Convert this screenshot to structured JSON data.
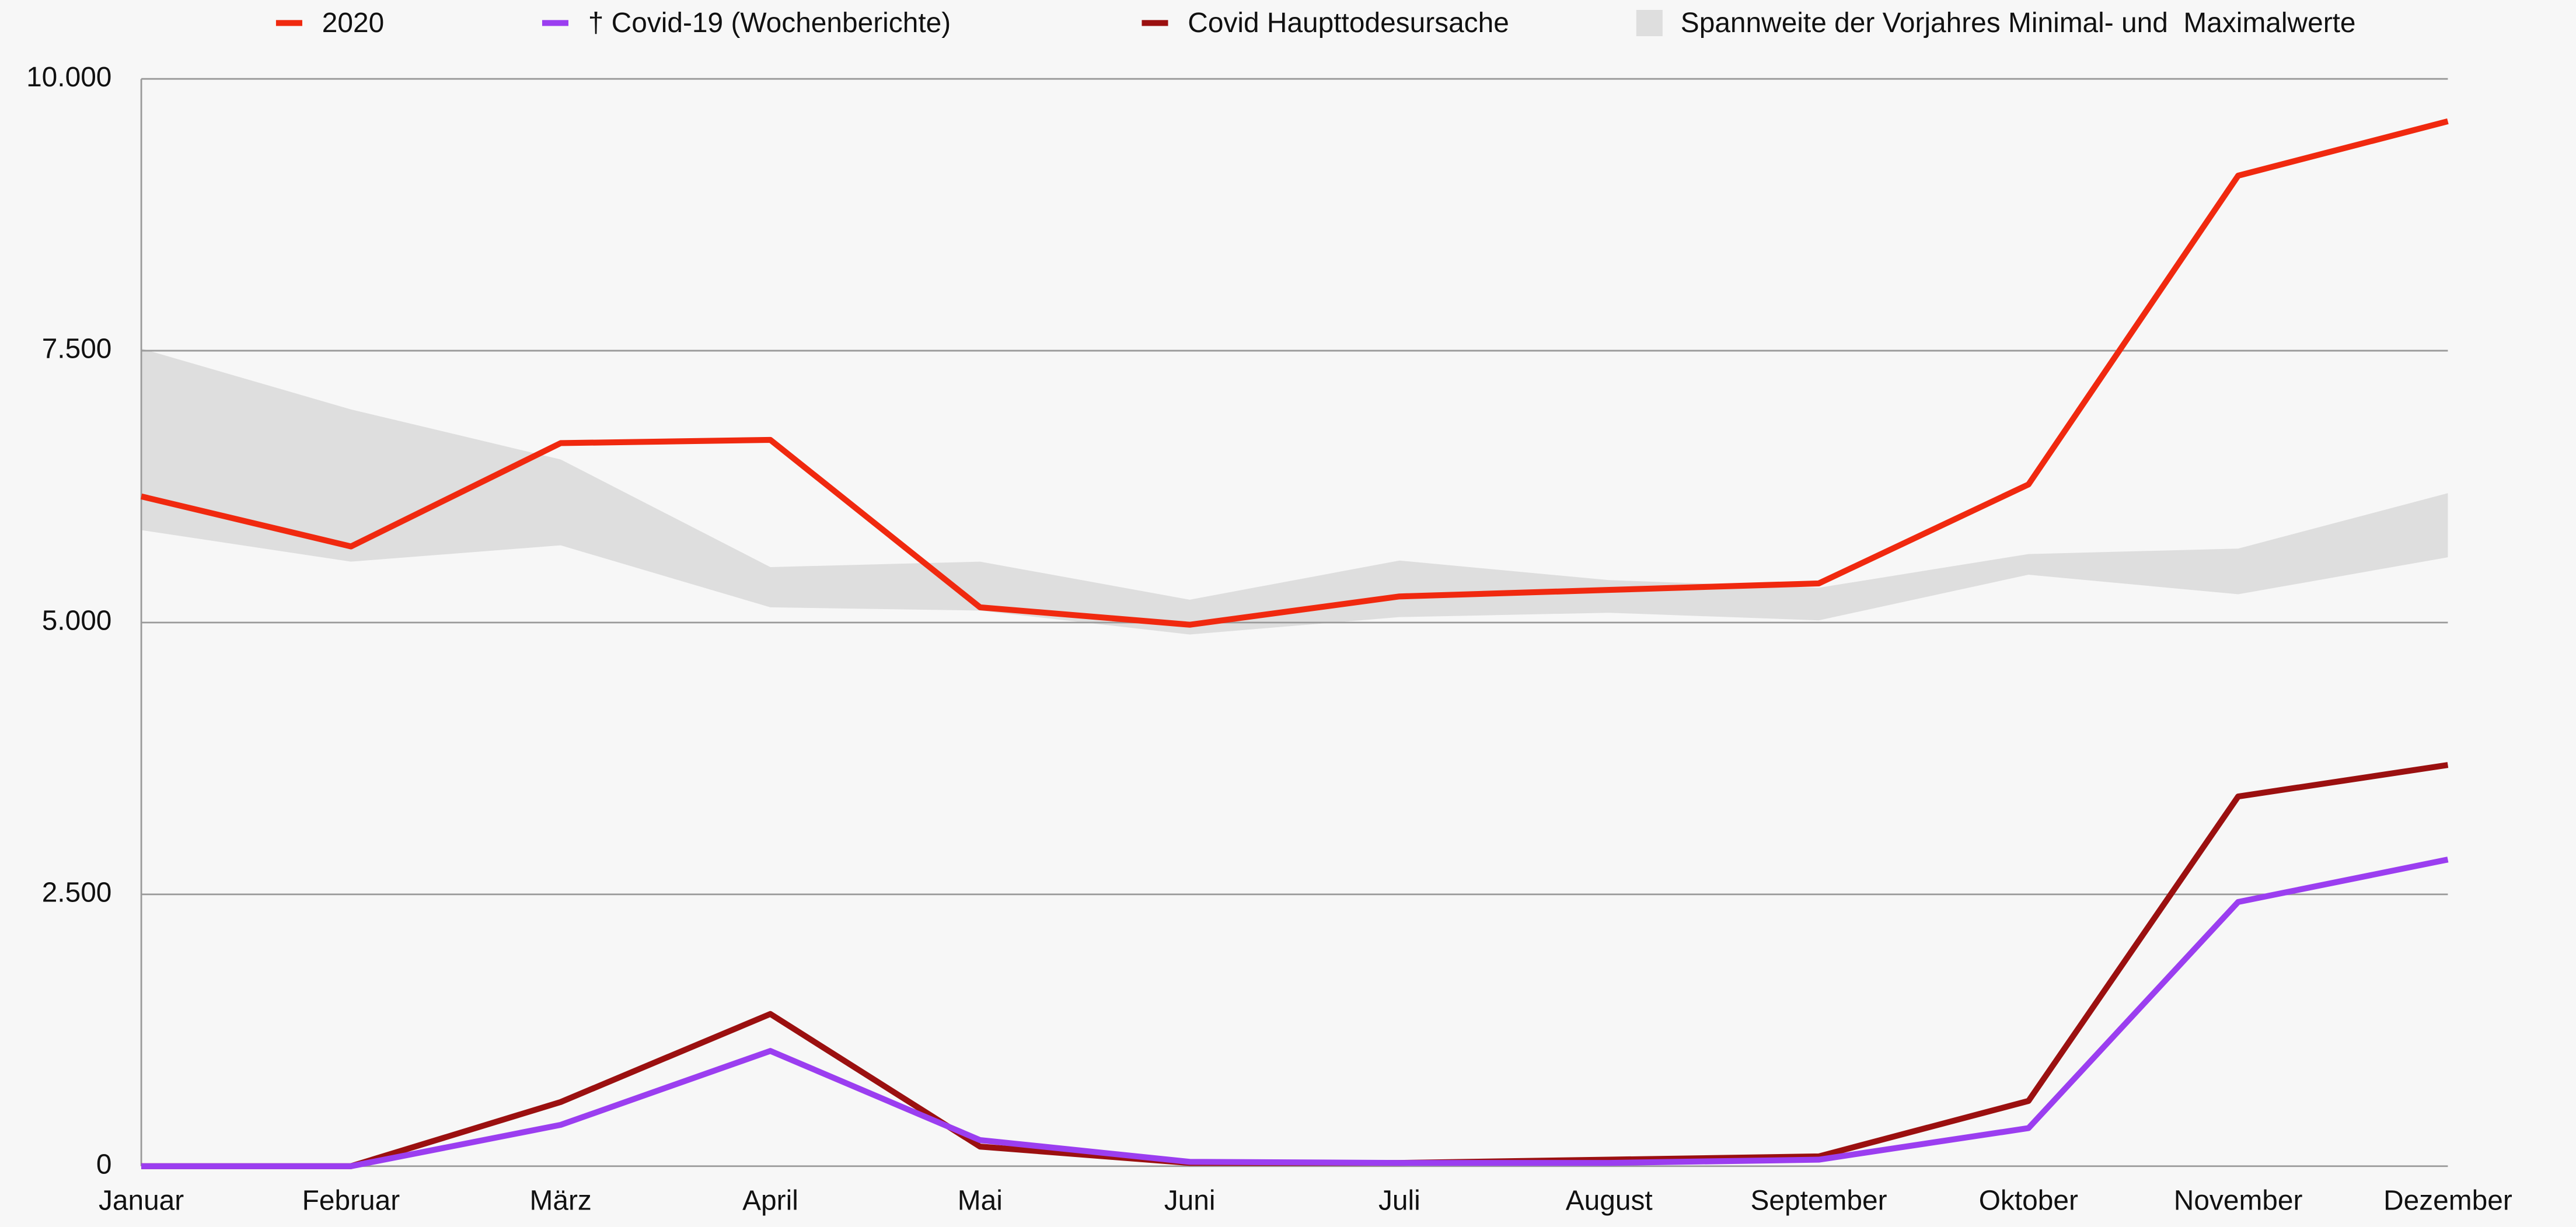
{
  "chart_data": {
    "type": "line",
    "categories": [
      "Januar",
      "Februar",
      "März",
      "April",
      "Mai",
      "Juni",
      "Juli",
      "August",
      "September",
      "Oktober",
      "November",
      "Dezember"
    ],
    "series": [
      {
        "name": "2020",
        "color": "#f0290f",
        "values": [
          6160,
          5700,
          6650,
          6680,
          5140,
          4980,
          5240,
          5300,
          5360,
          6270,
          9110,
          9610
        ]
      },
      {
        "name": "† Covid-19 (Wochenberichte)",
        "color": "#9b3ef0",
        "values": [
          0,
          0,
          380,
          1060,
          240,
          40,
          30,
          30,
          60,
          350,
          2430,
          2820
        ]
      },
      {
        "name": "Covid Haupttodesursache",
        "color": "#9b1010",
        "values": [
          0,
          0,
          590,
          1400,
          180,
          30,
          30,
          60,
          90,
          600,
          3400,
          3690
        ]
      }
    ],
    "range": {
      "name": "Spannweite der Vorjahres Minimal- und  Maximalwerte",
      "color": "#dedede",
      "min": [
        5850,
        5560,
        5710,
        5140,
        5110,
        4890,
        5050,
        5090,
        5020,
        5440,
        5260,
        5600
      ],
      "max": [
        7520,
        6960,
        6500,
        5510,
        5560,
        5210,
        5570,
        5390,
        5320,
        5630,
        5680,
        6190
      ]
    },
    "ylim": [
      0,
      10000
    ],
    "yticks": [
      0,
      {
        "value": 2500,
        "label": "2.500"
      },
      {
        "value": 5000,
        "label": "5.000"
      },
      {
        "value": 7500,
        "label": "7.500"
      },
      {
        "value": 10000,
        "label": "10.000"
      }
    ],
    "grid": true
  }
}
